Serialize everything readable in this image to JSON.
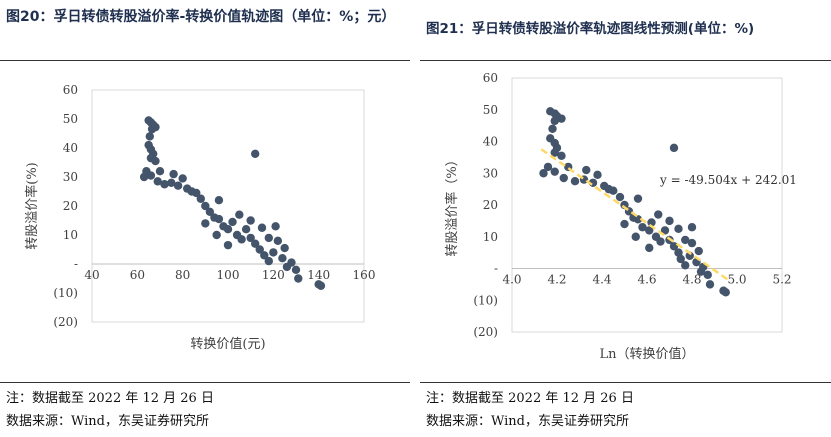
{
  "left": {
    "title": "图20：孚日转债转股溢价率-转换价值轨迹图（单位：%；元）",
    "note": "注：数据截至 2022 年 12 月 26 日",
    "source": "数据来源：Wind，东吴证券研究所"
  },
  "right": {
    "title": "图21：孚日转债转股溢价率轨迹图线性预测(单位：%)",
    "note": "注：数据截至 2022 年 12 月 26 日",
    "source": "数据来源：Wind，东吴证券研究所",
    "trend_label": "y = -49.504x + 242.01"
  },
  "colors": {
    "marker": "#44546a",
    "trend": "#ffd966",
    "title": "#1f2f4f"
  },
  "chart_data": [
    {
      "type": "scatter",
      "xlabel": "转换价值(元)",
      "ylabel": "转股溢价率(%)",
      "xlim": [
        40,
        160
      ],
      "ylim": [
        -20,
        60
      ],
      "xticks": [
        "40",
        "60",
        "80",
        "100",
        "120",
        "140",
        "160"
      ],
      "yticks": [
        "60",
        "50",
        "40",
        "30",
        "20",
        "10",
        "-",
        "(10)",
        "(20)"
      ],
      "grid": false,
      "points": [
        [
          65,
          49.5
        ],
        [
          66,
          48.8
        ],
        [
          67,
          48.0
        ],
        [
          68,
          47.2
        ],
        [
          66.5,
          46.5
        ],
        [
          65.5,
          44.0
        ],
        [
          65,
          41.0
        ],
        [
          66,
          39.5
        ],
        [
          67,
          38.0
        ],
        [
          66,
          36.5
        ],
        [
          68,
          35.5
        ],
        [
          64,
          32.0
        ],
        [
          63,
          30.0
        ],
        [
          66,
          30.5
        ],
        [
          69,
          28.5
        ],
        [
          72,
          27.5
        ],
        [
          75,
          28.0
        ],
        [
          78,
          27.0
        ],
        [
          80,
          29.5
        ],
        [
          82,
          26.0
        ],
        [
          84,
          25.0
        ],
        [
          86,
          24.5
        ],
        [
          88,
          22.5
        ],
        [
          90,
          20.0
        ],
        [
          92,
          18.0
        ],
        [
          94,
          16.0
        ],
        [
          96,
          15.5
        ],
        [
          98,
          13.0
        ],
        [
          100,
          12.0
        ],
        [
          102,
          14.5
        ],
        [
          104,
          10.0
        ],
        [
          106,
          8.5
        ],
        [
          108,
          12.0
        ],
        [
          110,
          9.0
        ],
        [
          112,
          7.0
        ],
        [
          114,
          5.0
        ],
        [
          116,
          3.0
        ],
        [
          118,
          1.0
        ],
        [
          120,
          4.0
        ],
        [
          122,
          8.0
        ],
        [
          124,
          2.0
        ],
        [
          126,
          -1.0
        ],
        [
          128,
          0.5
        ],
        [
          130,
          -2.0
        ],
        [
          131,
          -5.0
        ],
        [
          112,
          38.0
        ],
        [
          140,
          -7.0
        ],
        [
          141,
          -7.5
        ],
        [
          70,
          32.0
        ],
        [
          76,
          31.0
        ],
        [
          90,
          14.0
        ],
        [
          95,
          10.0
        ],
        [
          100,
          6.5
        ],
        [
          105,
          17.0
        ],
        [
          110,
          15.0
        ],
        [
          115,
          12.5
        ],
        [
          118,
          9.0
        ],
        [
          121,
          13.0
        ],
        [
          125,
          5.5
        ],
        [
          96,
          22.0
        ]
      ]
    },
    {
      "type": "scatter",
      "xlabel": "Ln（转换价值）",
      "ylabel": "转股溢价率（%）",
      "xlim": [
        4.0,
        5.2
      ],
      "ylim": [
        -20,
        60
      ],
      "xticks": [
        "4.0",
        "4.2",
        "4.4",
        "4.6",
        "4.8",
        "5.0",
        "5.2"
      ],
      "yticks": [
        "60",
        "50",
        "40",
        "30",
        "20",
        "10",
        "-",
        "(10)",
        "(20)"
      ],
      "grid": false,
      "trendline": {
        "slope": -49.504,
        "intercept": 242.01,
        "x_range": [
          4.13,
          4.97
        ]
      },
      "points": [
        [
          4.17,
          49.5
        ],
        [
          4.19,
          48.8
        ],
        [
          4.2,
          48.0
        ],
        [
          4.22,
          47.2
        ],
        [
          4.19,
          46.5
        ],
        [
          4.18,
          44.0
        ],
        [
          4.17,
          41.0
        ],
        [
          4.19,
          39.5
        ],
        [
          4.2,
          38.0
        ],
        [
          4.19,
          36.5
        ],
        [
          4.22,
          35.5
        ],
        [
          4.16,
          32.0
        ],
        [
          4.14,
          30.0
        ],
        [
          4.19,
          30.5
        ],
        [
          4.23,
          28.5
        ],
        [
          4.28,
          27.5
        ],
        [
          4.32,
          28.0
        ],
        [
          4.36,
          27.0
        ],
        [
          4.38,
          29.5
        ],
        [
          4.41,
          26.0
        ],
        [
          4.43,
          25.0
        ],
        [
          4.45,
          24.5
        ],
        [
          4.48,
          22.5
        ],
        [
          4.5,
          20.0
        ],
        [
          4.52,
          18.0
        ],
        [
          4.54,
          16.0
        ],
        [
          4.56,
          15.5
        ],
        [
          4.58,
          13.0
        ],
        [
          4.61,
          12.0
        ],
        [
          4.62,
          14.5
        ],
        [
          4.64,
          10.0
        ],
        [
          4.66,
          8.5
        ],
        [
          4.68,
          12.0
        ],
        [
          4.7,
          9.0
        ],
        [
          4.72,
          7.0
        ],
        [
          4.74,
          5.0
        ],
        [
          4.75,
          3.0
        ],
        [
          4.77,
          1.0
        ],
        [
          4.79,
          4.0
        ],
        [
          4.8,
          8.0
        ],
        [
          4.82,
          2.0
        ],
        [
          4.84,
          -1.0
        ],
        [
          4.85,
          0.5
        ],
        [
          4.87,
          -2.0
        ],
        [
          4.88,
          -5.0
        ],
        [
          4.72,
          38.0
        ],
        [
          4.94,
          -7.0
        ],
        [
          4.95,
          -7.5
        ],
        [
          4.25,
          32.0
        ],
        [
          4.33,
          31.0
        ],
        [
          4.5,
          14.0
        ],
        [
          4.55,
          10.0
        ],
        [
          4.61,
          6.5
        ],
        [
          4.65,
          17.0
        ],
        [
          4.7,
          15.0
        ],
        [
          4.74,
          12.5
        ],
        [
          4.77,
          9.0
        ],
        [
          4.8,
          13.0
        ],
        [
          4.83,
          5.5
        ],
        [
          4.56,
          22.0
        ]
      ]
    }
  ]
}
